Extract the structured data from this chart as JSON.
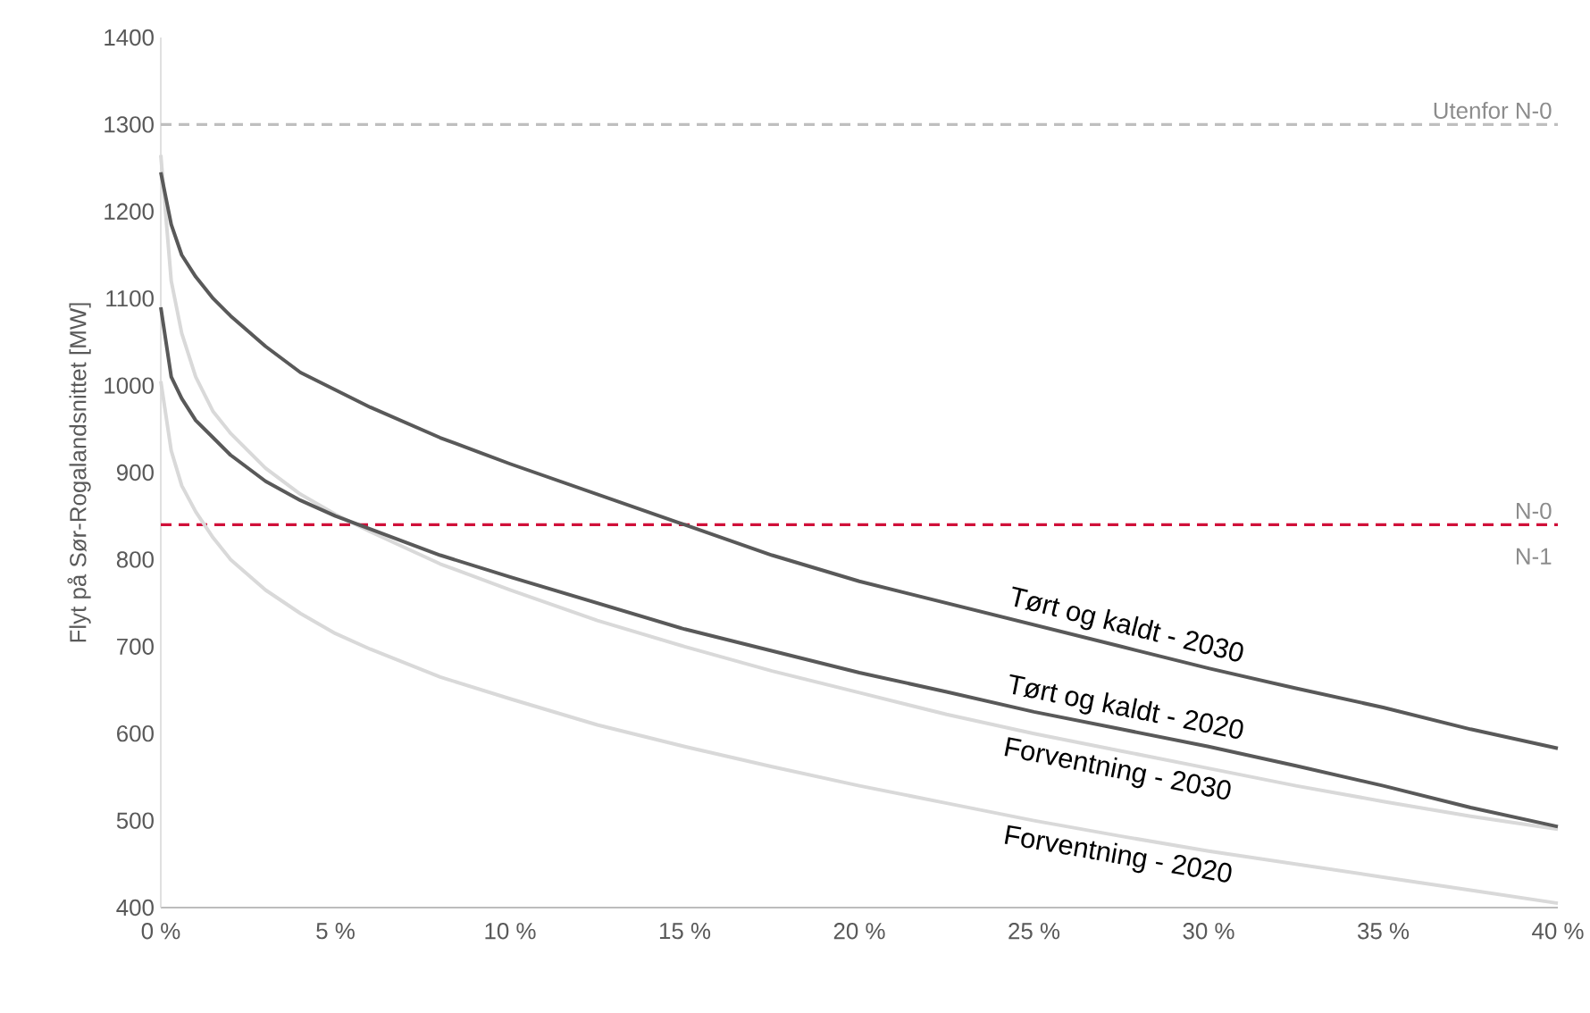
{
  "chart_data": {
    "type": "line",
    "ylabel": "Flyt på Sør-Rogalandsnittet [MW]",
    "x": [
      0,
      0.3,
      0.6,
      1,
      1.5,
      2,
      3,
      4,
      5,
      6,
      8,
      10,
      12.5,
      15,
      17.5,
      20,
      22.5,
      25,
      27.5,
      30,
      32.5,
      35,
      37.5,
      40
    ],
    "series": [
      {
        "name": "Tørt og kaldt - 2030",
        "color": "#595959",
        "values": [
          1245,
          1185,
          1150,
          1125,
          1100,
          1080,
          1045,
          1015,
          995,
          975,
          940,
          910,
          875,
          840,
          805,
          775,
          750,
          725,
          700,
          675,
          652,
          630,
          605,
          583
        ]
      },
      {
        "name": "Tørt og kaldt - 2020",
        "color": "#595959",
        "values": [
          1090,
          1010,
          985,
          960,
          940,
          920,
          890,
          868,
          850,
          835,
          805,
          780,
          750,
          720,
          695,
          670,
          648,
          625,
          605,
          585,
          563,
          540,
          515,
          493
        ]
      },
      {
        "name": "Forventning - 2030",
        "color": "#d9d9d9",
        "values": [
          1265,
          1120,
          1060,
          1010,
          970,
          945,
          905,
          875,
          852,
          832,
          795,
          765,
          730,
          700,
          672,
          647,
          622,
          600,
          580,
          560,
          540,
          522,
          505,
          490
        ]
      },
      {
        "name": "Forventning - 2020",
        "color": "#d9d9d9",
        "values": [
          1005,
          925,
          885,
          855,
          825,
          800,
          765,
          738,
          715,
          697,
          665,
          640,
          610,
          585,
          562,
          540,
          520,
          500,
          482,
          465,
          450,
          435,
          420,
          405
        ]
      }
    ],
    "xlim": [
      0,
      40
    ],
    "xticks": [
      {
        "value": 0,
        "label": "0 %"
      },
      {
        "value": 5,
        "label": "5 %"
      },
      {
        "value": 10,
        "label": "10 %"
      },
      {
        "value": 15,
        "label": "15 %"
      },
      {
        "value": 20,
        "label": "20 %"
      },
      {
        "value": 25,
        "label": "25 %"
      },
      {
        "value": 30,
        "label": "30 %"
      },
      {
        "value": 35,
        "label": "35 %"
      },
      {
        "value": 40,
        "label": "40 %"
      }
    ],
    "ylim": [
      400,
      1400
    ],
    "yticks": [
      400,
      500,
      600,
      700,
      800,
      900,
      1000,
      1100,
      1200,
      1300,
      1400
    ],
    "ref_lines": [
      {
        "axis": "y",
        "value": 1300,
        "label": "Utenfor N-0",
        "color": "#bfbfbf",
        "line_style": "dashed"
      },
      {
        "axis": "y",
        "value": 840,
        "label": "N-0",
        "color": "#d0103a",
        "line_style": "dashed"
      }
    ],
    "annotations": [
      {
        "text": "N-1",
        "x": 40,
        "y": 840
      }
    ],
    "grid": false,
    "marker": "none",
    "line_style": "solid"
  }
}
